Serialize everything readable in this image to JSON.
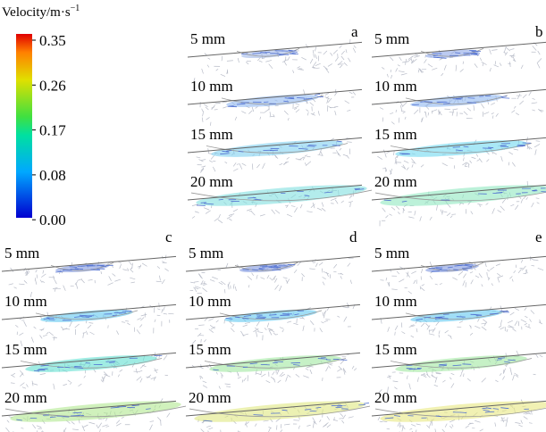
{
  "legend": {
    "title": "Velocity/m·s",
    "title_superscript": "−1",
    "ticks": [
      "0.35",
      "0.26",
      "0.17",
      "0.08",
      "0.00"
    ]
  },
  "panels": [
    {
      "label": "a",
      "depths": [
        "5 mm",
        "10 mm",
        "15 mm",
        "20 mm"
      ]
    },
    {
      "label": "b",
      "depths": [
        "5 mm",
        "10 mm",
        "15 mm",
        "20 mm"
      ]
    },
    {
      "label": "c",
      "depths": [
        "5 mm",
        "10 mm",
        "15 mm",
        "20 mm"
      ]
    },
    {
      "label": "d",
      "depths": [
        "5 mm",
        "10 mm",
        "15 mm",
        "20 mm"
      ]
    },
    {
      "label": "e",
      "depths": [
        "5 mm",
        "10 mm",
        "15 mm",
        "20 mm"
      ]
    }
  ]
}
